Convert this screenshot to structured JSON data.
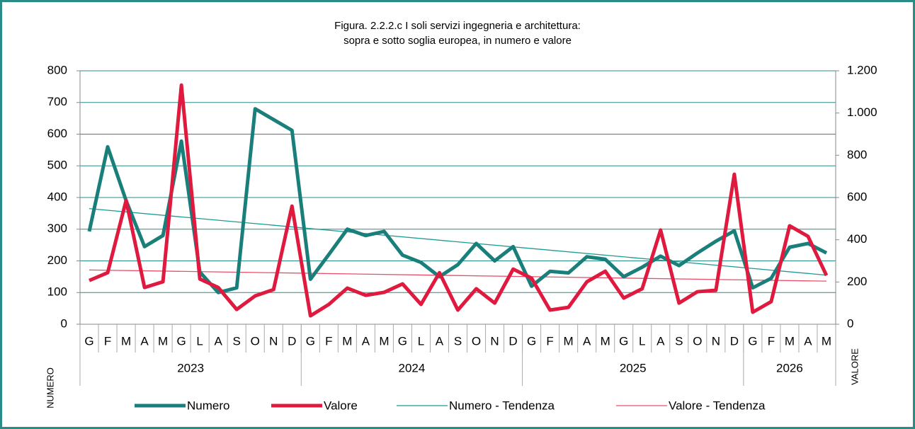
{
  "chart_data": {
    "type": "line",
    "title": [
      "Figura. 2.2.2.c  I soli servizi ingegneria e architettura:",
      "sopra e sotto soglia europea, in numero e valore"
    ],
    "ylabel": "NUMERO",
    "y2label": "VALORE",
    "categories": [
      "G",
      "F",
      "M",
      "A",
      "M",
      "G",
      "L",
      "A",
      "S",
      "O",
      "N",
      "D",
      "G",
      "F",
      "M",
      "A",
      "M",
      "G",
      "L",
      "A",
      "S",
      "O",
      "N",
      "D",
      "G",
      "F",
      "M",
      "A",
      "M",
      "G",
      "L",
      "A",
      "S",
      "O",
      "N",
      "D",
      "G",
      "F",
      "M",
      "A",
      "M"
    ],
    "category_groups": [
      {
        "label": "2023",
        "categories": 12
      },
      {
        "label": "2024",
        "categories": 12
      },
      {
        "label": "2025",
        "categories": 12
      },
      {
        "label": "2026",
        "categories": 5
      }
    ],
    "ylim": [
      0,
      800
    ],
    "yticks": [
      0,
      100,
      200,
      300,
      400,
      500,
      600,
      700,
      800
    ],
    "y2lim": [
      0,
      1200
    ],
    "y2ticks": [
      0,
      200,
      400,
      600,
      800,
      {
        "value": 1000,
        "label": "1.000"
      },
      {
        "value": 1200,
        "label": "1.200"
      }
    ],
    "grid": true,
    "legend": "bottom",
    "series": [
      {
        "name": "Numero",
        "color": "#1a7f7a",
        "values": [
          293,
          560,
          390,
          245,
          280,
          578,
          165,
          100,
          115,
          680,
          646,
          612,
          142,
          220,
          300,
          280,
          293,
          218,
          195,
          150,
          188,
          255,
          200,
          245,
          120,
          167,
          162,
          213,
          205,
          150,
          180,
          215,
          185,
          225,
          262,
          295,
          115,
          145,
          243,
          255,
          225
        ]
      },
      {
        "name": "Valore",
        "color": "#e0193f",
        "axis": "y2",
        "values": [
          207,
          244,
          586,
          174,
          201,
          1132,
          214,
          174,
          70,
          134,
          164,
          559,
          40,
          94,
          171,
          137,
          151,
          191,
          94,
          244,
          67,
          168,
          100,
          261,
          218,
          67,
          80,
          201,
          251,
          124,
          168,
          446,
          100,
          154,
          161,
          710,
          57,
          107,
          466,
          416,
          231
        ]
      }
    ],
    "trendlines": [
      {
        "name": "Numero - Tendenza",
        "color": "#1a9c94",
        "start": 365,
        "end": 155
      },
      {
        "name": "Valore - Tendenza",
        "color": "#e8506a",
        "axis": "y2",
        "start": 257,
        "end": 204
      }
    ]
  }
}
